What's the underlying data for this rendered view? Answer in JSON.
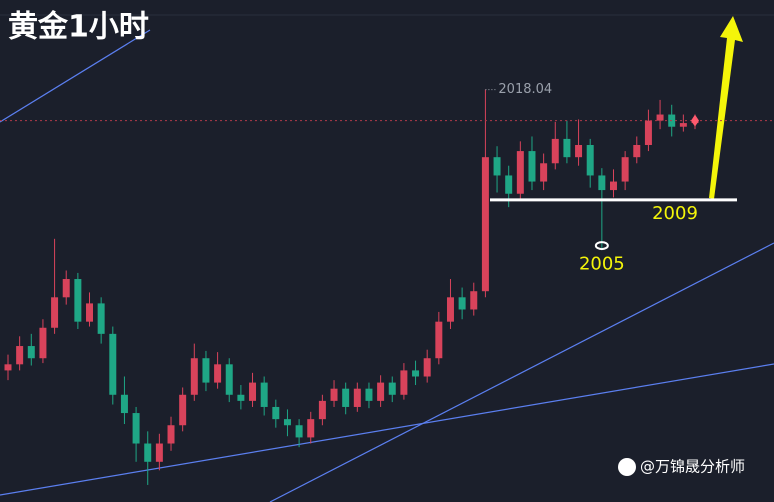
{
  "chart_data": {
    "type": "candlestick",
    "title": "黄金1小时",
    "open": [
      1995,
      1995.5,
      1997,
      1996,
      1998.5,
      2001,
      2002.5,
      1999,
      2000.5,
      1998,
      1993,
      1991.5,
      1989,
      1987.5,
      1989,
      1990.5,
      1993,
      1996,
      1994,
      1995.5,
      1993,
      1992.5,
      1994,
      1992,
      1991,
      1990.5,
      1989.5,
      1991,
      1992.5,
      1993.5,
      1992,
      1993.5,
      1992.5,
      1994,
      1993,
      1995,
      1994.5,
      1996,
      1999,
      2001,
      2000,
      2001.5,
      2012.5,
      2011,
      2009.5,
      2013,
      2010.5,
      2012,
      2014,
      2012.5,
      2013.5,
      2011,
      2009.8,
      2010.5,
      2012.5,
      2013.5,
      2015.5,
      2016,
      2015,
      2015.3
    ],
    "high": [
      1996.3,
      1997.8,
      1998,
      1999.2,
      2005.8,
      2003.2,
      2003,
      2001.4,
      2001,
      1998.6,
      1994.5,
      1992,
      1990,
      1989.8,
      1991.2,
      1993.6,
      1997.2,
      1996.6,
      1996.5,
      1996,
      1993.8,
      1994.8,
      1994.5,
      1992.6,
      1991.8,
      1991,
      1991.6,
      1993,
      1994.2,
      1994,
      1994,
      1994,
      1994.6,
      1994.5,
      1995.6,
      1995.8,
      1996.7,
      1999.8,
      2002.5,
      2001.8,
      2002.2,
      2018.04,
      2013.4,
      2011.8,
      2013.8,
      2014.2,
      2012.8,
      2015.4,
      2015.5,
      2015.6,
      2014,
      2011.6,
      2011.5,
      2013,
      2014.2,
      2016.4,
      2017.2,
      2016.8,
      2016,
      2016
    ],
    "low": [
      1994.2,
      1995,
      1995.4,
      1995.6,
      1998,
      2000.4,
      1998.4,
      1998.6,
      1997.2,
      1992.2,
      1990.6,
      1987.5,
      1985.6,
      1986.8,
      1988.4,
      1990,
      1992.5,
      1993.3,
      1993.5,
      1992.4,
      1991.8,
      1992,
      1991.3,
      1990.3,
      1989.6,
      1988.7,
      1989,
      1990.5,
      1992,
      1991.4,
      1991.6,
      1991.9,
      1992,
      1992.4,
      1992.6,
      1993.8,
      1994,
      1995.5,
      1998.4,
      1999.2,
      1999.5,
      2001,
      2009.6,
      2008.4,
      2009,
      2009.8,
      2009.8,
      2011.5,
      2012,
      2011.8,
      2010,
      2005,
      2009.2,
      2009.8,
      2012,
      2013,
      2014.8,
      2014.2,
      2014.6,
      2014.8
    ],
    "close": [
      1995.5,
      1997,
      1996,
      1998.5,
      2001,
      2002.5,
      1999,
      2000.5,
      1998,
      1993,
      1991.5,
      1989,
      1987.5,
      1989,
      1990.5,
      1993,
      1996,
      1994,
      1995.5,
      1993,
      1992.5,
      1994,
      1992,
      1991,
      1990.5,
      1989.5,
      1991,
      1992.5,
      1993.5,
      1992,
      1993.5,
      1992.5,
      1994,
      1993,
      1995,
      1994.5,
      1996,
      1999,
      2001,
      2000,
      2001.5,
      2012.5,
      2011,
      2009.5,
      2013,
      2010.5,
      2012,
      2014,
      2012.5,
      2013.5,
      2011,
      2009.8,
      2010.5,
      2012.5,
      2013.5,
      2015.5,
      2016,
      2015,
      2015.3,
      2015.5
    ],
    "up_color": "#d8435b",
    "down_color": "#1fa786",
    "ylim": [
      1984.2,
      2025.4
    ],
    "high_mark": 2018.04,
    "support_line": 2009,
    "low_mark": 2005,
    "watermark": "@万锦晟分析师"
  }
}
